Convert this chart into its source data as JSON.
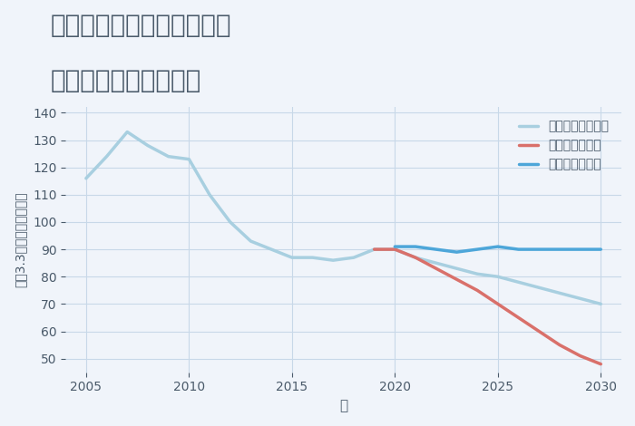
{
  "title_line1": "兵庫県豊岡市出石町大谷の",
  "title_line2": "中古戸建ての価格推移",
  "xlabel": "年",
  "ylabel": "坪（3.3㎡）単価（万円）",
  "background_color": "#f0f4fa",
  "plot_bg_color": "#f0f4fa",
  "good_scenario": {
    "label": "グッドシナリオ",
    "color": "#4da6d9",
    "linewidth": 2.5,
    "years": [
      2020,
      2021,
      2022,
      2023,
      2024,
      2025,
      2026,
      2027,
      2028,
      2029,
      2030
    ],
    "values": [
      91,
      91,
      90,
      89,
      90,
      91,
      90,
      90,
      90,
      90,
      90
    ]
  },
  "bad_scenario": {
    "label": "バッドシナリオ",
    "color": "#d9706a",
    "linewidth": 2.5,
    "years": [
      2019,
      2020,
      2021,
      2022,
      2023,
      2024,
      2025,
      2026,
      2027,
      2028,
      2029,
      2030
    ],
    "values": [
      90,
      90,
      87,
      83,
      79,
      75,
      70,
      65,
      60,
      55,
      51,
      48
    ]
  },
  "normal_scenario": {
    "label": "ノーマルシナリオ",
    "color": "#a8cfe0",
    "linewidth": 2.5,
    "years": [
      2005,
      2006,
      2007,
      2008,
      2009,
      2010,
      2011,
      2012,
      2013,
      2014,
      2015,
      2016,
      2017,
      2018,
      2019,
      2020,
      2021,
      2022,
      2023,
      2024,
      2025,
      2026,
      2027,
      2028,
      2029,
      2030
    ],
    "values": [
      116,
      124,
      133,
      128,
      124,
      123,
      110,
      100,
      93,
      90,
      87,
      87,
      86,
      87,
      90,
      90,
      87,
      85,
      83,
      81,
      80,
      78,
      76,
      74,
      72,
      70
    ]
  },
  "xlim": [
    2004,
    2031
  ],
  "ylim": [
    45,
    142
  ],
  "yticks": [
    50,
    60,
    70,
    80,
    90,
    100,
    110,
    120,
    130,
    140
  ],
  "xticks": [
    2005,
    2010,
    2015,
    2020,
    2025,
    2030
  ],
  "grid_color": "#c8d8e8",
  "title_color": "#4a5a6a",
  "tick_color": "#4a5a6a",
  "title_fontsize": 20,
  "label_fontsize": 11
}
